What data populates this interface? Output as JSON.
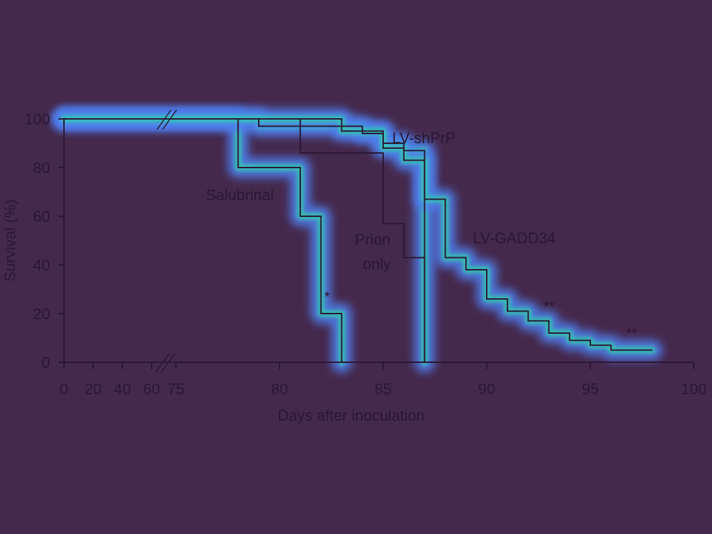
{
  "chart_data": {
    "type": "line",
    "step": true,
    "xlabel": "Days after inoculation",
    "ylabel": "Survival (%)",
    "ylim": [
      0,
      100
    ],
    "x_ticks": [
      "0",
      "20",
      "40",
      "60",
      "75",
      "80",
      "85",
      "90",
      "95",
      "100"
    ],
    "y_ticks": [
      "0",
      "20",
      "40",
      "60",
      "80",
      "100"
    ],
    "axis_break": "between 60 and 75",
    "series": [
      {
        "name": "Prion only",
        "color": "#2a1733",
        "x": [
          0,
          81,
          81,
          84,
          84,
          85,
          85,
          86,
          86,
          87,
          87
        ],
        "y": [
          100,
          100,
          86,
          86,
          86,
          86,
          57,
          57,
          43,
          43,
          0
        ]
      },
      {
        "name": "Salubrinal",
        "color": "#2a1733",
        "x": [
          0,
          78,
          78,
          81,
          81,
          82,
          82,
          83,
          83
        ],
        "y": [
          100,
          100,
          80,
          80,
          60,
          60,
          20,
          20,
          0
        ]
      },
      {
        "name": "LV-shPrP",
        "color": "#2a1733",
        "x": [
          0,
          79,
          79,
          84,
          84,
          85,
          85,
          86,
          86,
          87,
          87
        ],
        "y": [
          100,
          100,
          97,
          97,
          94,
          94,
          90,
          90,
          87,
          87,
          0
        ]
      },
      {
        "name": "LV-GADD34",
        "color": "#2a1733",
        "x": [
          0,
          83,
          83,
          85,
          85,
          86,
          86,
          87,
          87,
          88,
          88,
          89,
          89,
          90,
          90,
          91,
          91,
          92,
          92,
          93,
          93,
          94,
          94,
          95,
          95,
          96,
          96,
          98
        ],
        "y": [
          100,
          100,
          95,
          95,
          88,
          88,
          83,
          83,
          67,
          67,
          43,
          43,
          38,
          38,
          26,
          26,
          21,
          21,
          17,
          17,
          12,
          12,
          9,
          9,
          7,
          7,
          5,
          5
        ]
      }
    ],
    "annotations": [
      {
        "text": "*",
        "x": 82.3,
        "y": 25
      },
      {
        "text": "**",
        "x": 93,
        "y": 21
      },
      {
        "text": "**",
        "x": 97,
        "y": 10
      }
    ]
  }
}
